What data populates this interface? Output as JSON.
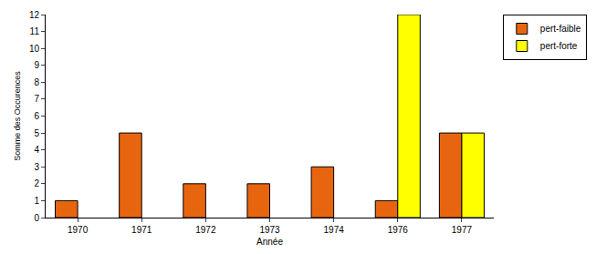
{
  "chart_data": {
    "type": "bar",
    "categories": [
      "1970",
      "1971",
      "1972",
      "1973",
      "1974",
      "1976",
      "1977"
    ],
    "series": [
      {
        "name": "pert-faible",
        "color": "#e8650f",
        "values": [
          1,
          5,
          2,
          2,
          3,
          1,
          5
        ]
      },
      {
        "name": "pert-forte",
        "color": "#ffff00",
        "values": [
          null,
          null,
          null,
          null,
          null,
          12,
          5
        ]
      }
    ],
    "x_label": "Année",
    "y_label": "Somme des Occurences",
    "ylim": [
      0,
      12
    ],
    "yticks": [
      0,
      1,
      2,
      3,
      4,
      5,
      6,
      7,
      8,
      9,
      10,
      11,
      12
    ],
    "grid": false,
    "legend": "top right"
  }
}
